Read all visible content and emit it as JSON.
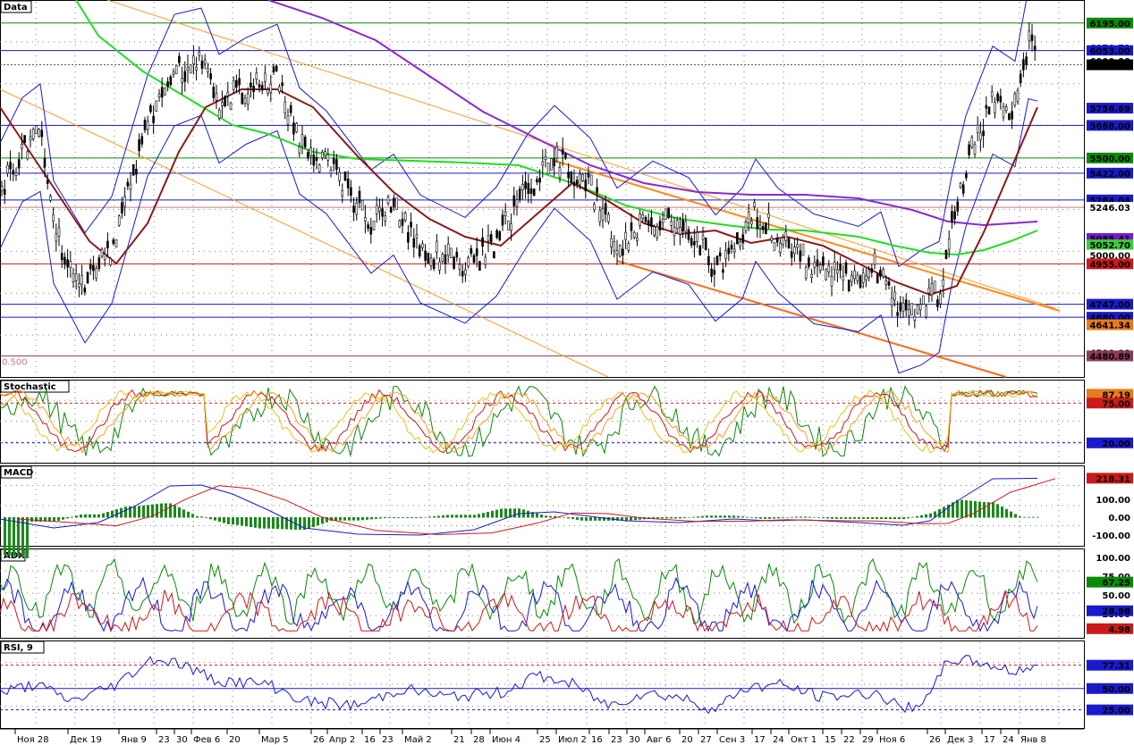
{
  "chart_data": {
    "type": "line",
    "x_ticks": [
      "Ноя 28",
      "Дек 19",
      "Янв 9",
      "23",
      "30",
      "Фев 6",
      "20",
      "Мар 5",
      "26",
      "Апр 2",
      "16",
      "23",
      "Май 2",
      "21",
      "28",
      "Июн 4",
      "25",
      "Июл 2",
      "16",
      "23",
      "30",
      "Авг 6",
      "20",
      "27",
      "Сен 3",
      "17",
      "24",
      "Окт 1",
      "15",
      "22",
      "29",
      "Ноя 6",
      "26",
      "Дек 3",
      "17",
      "24",
      "Янв 8"
    ],
    "panels": [
      {
        "name": "Data",
        "ylim": [
          4400,
          6240
        ],
        "hlines": [
          {
            "value": 6195.0,
            "color": "#0a8a0a",
            "style": "solid"
          },
          {
            "value": 6053.0,
            "color": "#1a1acc",
            "style": "solid"
          },
          {
            "value": 5980.0,
            "color": "#555555",
            "style": "dotted"
          },
          {
            "value": 5668.0,
            "color": "#1a1acc",
            "style": "solid"
          },
          {
            "value": 5500.0,
            "color": "#0a8a0a",
            "style": "solid"
          },
          {
            "value": 5422.0,
            "color": "#1a1acc",
            "style": "solid"
          },
          {
            "value": 5284.04,
            "color": "#1a1acc",
            "style": "solid"
          },
          {
            "value": 5246.03,
            "color": "#c87a7a",
            "style": "solid"
          },
          {
            "value": 4955.0,
            "color": "#cc1a1a",
            "style": "solid"
          },
          {
            "value": 4747.0,
            "color": "#1a1acc",
            "style": "solid"
          },
          {
            "value": 4680.0,
            "color": "#1a1acc",
            "style": "solid"
          },
          {
            "value": 4480.89,
            "color": "#8a3a5a",
            "style": "solid"
          }
        ],
        "price_labels": [
          {
            "text": "6195.00",
            "bg": "#0a8a0a",
            "fg": "#ffffff",
            "value": 6195.0
          },
          {
            "text": "6070.71",
            "bg": "#ffffff",
            "fg": "#000000",
            "value": 6070.71
          },
          {
            "text": "6053.00",
            "bg": "#1a1acc",
            "fg": "#ffffff",
            "value": 6053.0
          },
          {
            "text": "6000.00",
            "bg": "#ffffff",
            "fg": "#000000",
            "value": 6000.0
          },
          {
            "text": "5980.00",
            "bg": "#000000",
            "fg": "#ffffff",
            "value": 5980.0
          },
          {
            "text": "5756.69",
            "bg": "#1a1acc",
            "fg": "#ffffff",
            "value": 5756.69
          },
          {
            "text": "5668.00",
            "bg": "#1a1acc",
            "fg": "#ffffff",
            "value": 5668.0
          },
          {
            "text": "5500.00",
            "bg": "#0a8a0a",
            "fg": "#ffffff",
            "value": 5500.0
          },
          {
            "text": "5422.00",
            "bg": "#1a1acc",
            "fg": "#ffffff",
            "value": 5422.0
          },
          {
            "text": "5284.04",
            "bg": "#1a1acc",
            "fg": "#ffffff",
            "value": 5284.04
          },
          {
            "text": "5246.03",
            "bg": "#ffffff",
            "fg": "#000000",
            "value": 5246.03
          },
          {
            "text": "5085.41",
            "bg": "#7a1acc",
            "fg": "#ffffff",
            "value": 5085.41
          },
          {
            "text": "5052.70",
            "bg": "#3acc3a",
            "fg": "#ffffff",
            "value": 5052.7
          },
          {
            "text": "5000.00",
            "bg": "#ffffff",
            "fg": "#000000",
            "value": 5000.0
          },
          {
            "text": "4955.00",
            "bg": "#cc1a1a",
            "fg": "#ffffff",
            "value": 4955.0
          },
          {
            "text": "4747.00",
            "bg": "#1a1acc",
            "fg": "#ffffff",
            "value": 4747.0
          },
          {
            "text": "4680.00",
            "bg": "#1a1acc",
            "fg": "#ffffff",
            "value": 4680.0
          },
          {
            "text": "4641.34",
            "bg": "#e87a1a",
            "fg": "#000000",
            "value": 4641.34
          },
          {
            "text": "4500.00",
            "bg": "#ffffff",
            "fg": "#000000",
            "value": 4500.0
          },
          {
            "text": "4480.89",
            "bg": "#8a3a5a",
            "fg": "#ffffff",
            "value": 4480.89
          }
        ],
        "annotation": "0.500"
      },
      {
        "name": "Stochastic",
        "ylim": [
          0,
          100
        ],
        "hlines": [
          {
            "value": 75,
            "color": "#cc1a1a",
            "style": "dashed"
          },
          {
            "value": 20,
            "color": "#1a1acc",
            "style": "dashed"
          }
        ],
        "price_labels": [
          {
            "text": "87.19",
            "bg": "#e87a1a",
            "fg": "#ffffff",
            "value": 87.19
          },
          {
            "text": "75.00",
            "bg": "#cc1a1a",
            "fg": "#ffffff",
            "value": 75.0
          },
          {
            "text": "20.00",
            "bg": "#1a1acc",
            "fg": "#ffffff",
            "value": 20.0
          }
        ]
      },
      {
        "name": "MACD",
        "ylim": [
          -130,
          260
        ],
        "ticks": [
          {
            "text": "100.00",
            "value": 100
          },
          {
            "text": "0.00",
            "value": 0
          },
          {
            "text": "-100.00",
            "value": -100
          }
        ],
        "price_labels": [
          {
            "text": "218.31",
            "bg": "#cc1a1a",
            "fg": "#ffffff",
            "value": 218.31
          }
        ]
      },
      {
        "name": "ADX",
        "ylim": [
          0,
          105
        ],
        "ticks": [
          {
            "text": "100.00",
            "value": 100
          },
          {
            "text": "75.00",
            "value": 75
          },
          {
            "text": "50.00",
            "value": 50
          },
          {
            "text": "25.00",
            "value": 25
          }
        ],
        "price_labels": [
          {
            "text": "67.25",
            "bg": "#0a8a0a",
            "fg": "#ffffff",
            "value": 67.25
          },
          {
            "text": "28.98",
            "bg": "#1a1acc",
            "fg": "#ffffff",
            "value": 28.98
          },
          {
            "text": "4.98",
            "bg": "#cc1a1a",
            "fg": "#ffffff",
            "value": 4.98
          }
        ]
      },
      {
        "name": "RSI, 9",
        "ylim": [
          10,
          100
        ],
        "hlines": [
          {
            "value": 77.31,
            "color": "#cc1a1a",
            "style": "dashed"
          },
          {
            "value": 50,
            "color": "#1a1acc",
            "style": "solid"
          },
          {
            "value": 25,
            "color": "#1a1acc",
            "style": "dashed"
          }
        ],
        "price_labels": [
          {
            "text": "77.31",
            "bg": "#1a1acc",
            "fg": "#ffffff",
            "value": 77.31
          },
          {
            "text": "50.00",
            "bg": "#1a1acc",
            "fg": "#ffffff",
            "value": 50.0
          },
          {
            "text": "25.00",
            "bg": "#1a1acc",
            "fg": "#ffffff",
            "value": 25.0
          }
        ]
      }
    ]
  }
}
